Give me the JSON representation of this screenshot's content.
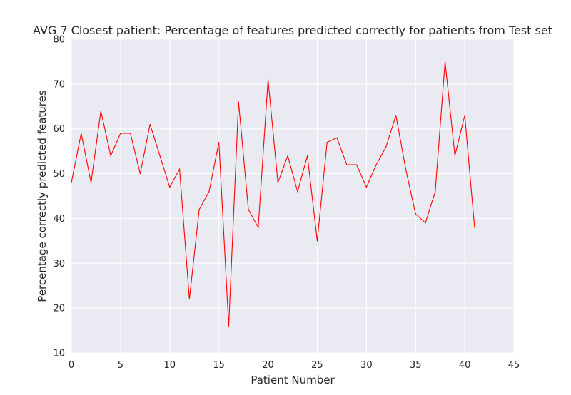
{
  "chart_data": {
    "type": "line",
    "title": "AVG 7 Closest patient: Percentage of features predicted correctly for patients from Test set",
    "xlabel": "Patient Number",
    "ylabel": "Percentage correctly predicted features",
    "xlim": [
      0,
      45
    ],
    "ylim": [
      10,
      80
    ],
    "xticks": [
      0,
      5,
      10,
      15,
      20,
      25,
      30,
      35,
      40,
      45
    ],
    "yticks": [
      10,
      20,
      30,
      40,
      50,
      60,
      70,
      80
    ],
    "grid": true,
    "legend": "none",
    "colors": {
      "line": "#ff0000",
      "plot_background": "#eaeaf2",
      "grid": "#ffffff"
    },
    "series": [
      {
        "x": [
          0,
          1,
          2,
          3,
          4,
          5,
          6,
          7,
          8,
          9,
          10,
          11,
          12,
          13,
          14,
          15,
          16,
          17,
          18,
          19,
          20,
          21,
          22,
          23,
          24,
          25,
          26,
          27,
          28,
          29,
          30,
          31,
          32,
          33,
          34,
          35,
          36,
          37,
          38,
          39,
          40,
          41
        ],
        "values": [
          48,
          59,
          48,
          64,
          54,
          59,
          59,
          50,
          61,
          54,
          47,
          51,
          22,
          42,
          46,
          57,
          16,
          66,
          42,
          38,
          71,
          48,
          54,
          46,
          54,
          35,
          57,
          58,
          52,
          52,
          47,
          52,
          56,
          63,
          51,
          41,
          39,
          46,
          75,
          54,
          63,
          38
        ]
      }
    ]
  }
}
